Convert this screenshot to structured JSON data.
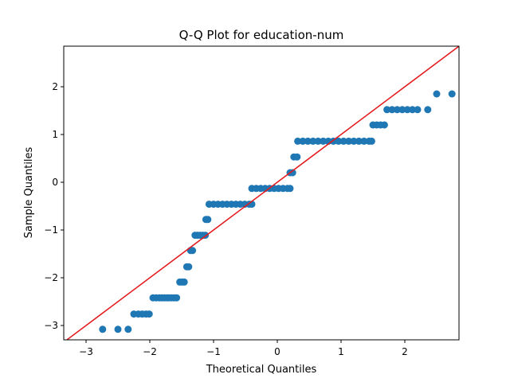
{
  "chart_data": {
    "type": "scatter",
    "title": "Q-Q Plot for education-num",
    "xlabel": "Theoretical Quantiles",
    "ylabel": "Sample Quantiles",
    "xlim": [
      -3.35,
      2.85
    ],
    "ylim": [
      -3.3,
      2.85
    ],
    "xticks": [
      -3,
      -2,
      -1,
      0,
      1,
      2
    ],
    "yticks": [
      -3,
      -2,
      -1,
      0,
      1,
      2
    ],
    "grid": false,
    "colors": {
      "points": "#1f77b4",
      "reference_line": "#e41a1c"
    },
    "reference_line": {
      "slope": 1,
      "intercept": 0
    },
    "series": [
      {
        "groups": [
          {
            "y": -3.08,
            "x": [
              -2.74,
              -2.5,
              -2.34
            ]
          },
          {
            "y": -2.76,
            "x": [
              -2.25,
              -2.18,
              -2.12,
              -2.06,
              -2.01
            ]
          },
          {
            "y": -2.42,
            "x": [
              -1.95,
              -1.9,
              -1.85,
              -1.81,
              -1.77,
              -1.73,
              -1.7,
              -1.66,
              -1.62,
              -1.58
            ]
          },
          {
            "y": -2.09,
            "x": [
              -1.53,
              -1.49,
              -1.46
            ]
          },
          {
            "y": -1.77,
            "x": [
              -1.42,
              -1.39
            ]
          },
          {
            "y": -1.43,
            "x": [
              -1.36,
              -1.33
            ]
          },
          {
            "y": -1.11,
            "x": [
              -1.29,
              -1.25,
              -1.21,
              -1.17,
              -1.13
            ]
          },
          {
            "y": -0.78,
            "x": [
              -1.12,
              -1.09
            ]
          },
          {
            "y": -0.46,
            "x": [
              -1.07,
              -1.0,
              -0.93,
              -0.86,
              -0.79,
              -0.72,
              -0.65,
              -0.58,
              -0.51,
              -0.44,
              -0.4
            ]
          },
          {
            "y": -0.13,
            "x": [
              -0.4,
              -0.33,
              -0.26,
              -0.19,
              -0.12,
              -0.05,
              0.02,
              0.09,
              0.16,
              0.2
            ]
          },
          {
            "y": 0.2,
            "x": [
              0.2,
              0.24
            ]
          },
          {
            "y": 0.53,
            "x": [
              0.26,
              0.31
            ]
          },
          {
            "y": 0.86,
            "x": [
              0.32,
              0.4,
              0.48,
              0.56,
              0.64,
              0.72,
              0.8,
              0.88,
              0.96,
              1.04,
              1.12,
              1.2,
              1.28,
              1.36,
              1.44,
              1.48
            ]
          },
          {
            "y": 1.2,
            "x": [
              1.5,
              1.56,
              1.62,
              1.68
            ]
          },
          {
            "y": 1.52,
            "x": [
              1.72,
              1.8,
              1.88,
              1.96,
              2.04,
              2.12,
              2.2,
              2.36
            ]
          },
          {
            "y": 1.85,
            "x": [
              2.5,
              2.74
            ]
          }
        ]
      }
    ]
  }
}
